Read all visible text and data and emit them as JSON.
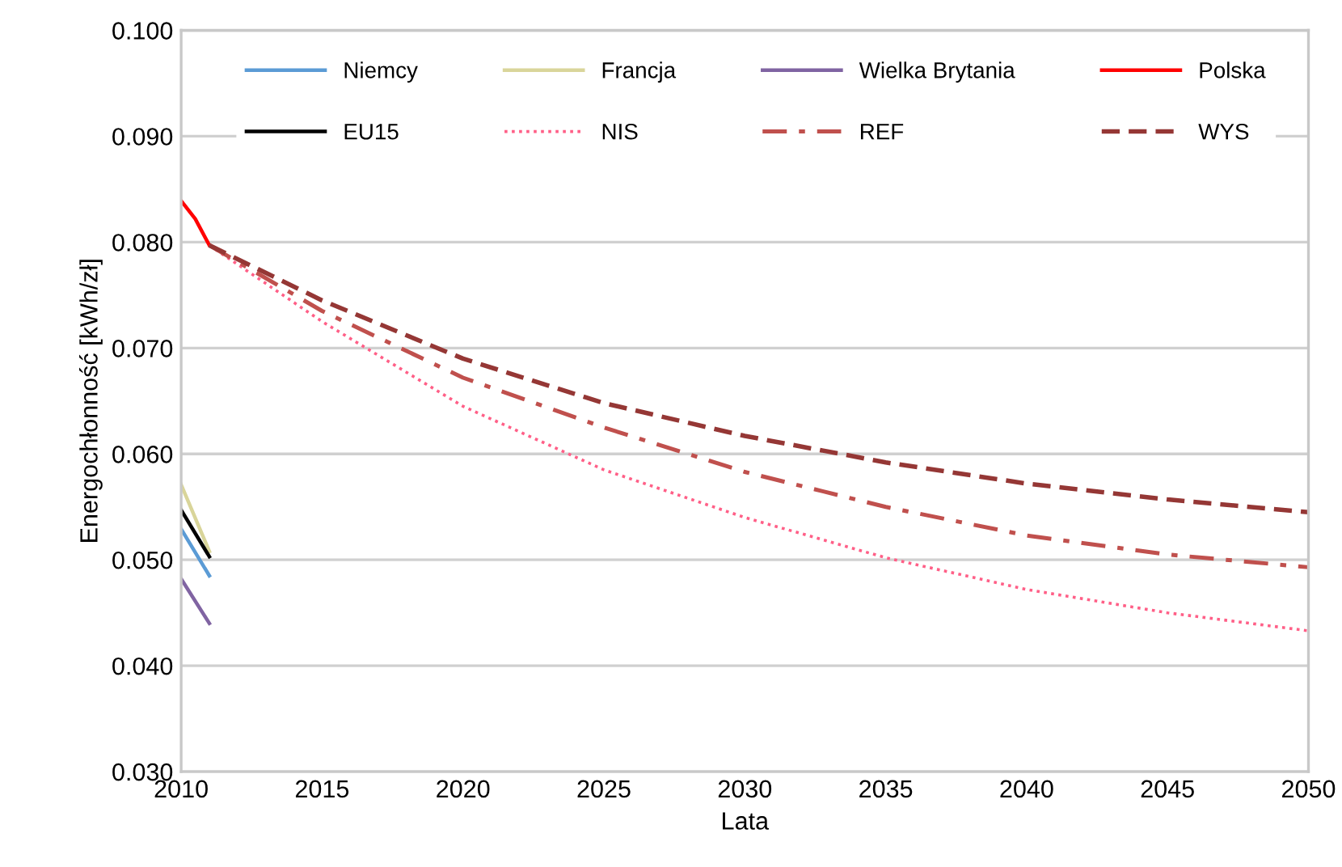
{
  "chart_data": {
    "type": "line",
    "xlabel": "Lata",
    "ylabel": "Energochłonność [kWh/zł]",
    "xlim": [
      2010,
      2050
    ],
    "xticks": [
      2010,
      2015,
      2020,
      2025,
      2030,
      2035,
      2040,
      2045,
      2050
    ],
    "ylim": [
      0.03,
      0.1
    ],
    "yticks": [
      {
        "value": 0.03,
        "label": "0.030"
      },
      {
        "value": 0.04,
        "label": "0.040"
      },
      {
        "value": 0.05,
        "label": "0.050"
      },
      {
        "value": 0.06,
        "label": "0.060"
      },
      {
        "value": 0.07,
        "label": "0.070"
      },
      {
        "value": 0.08,
        "label": "0.080"
      },
      {
        "value": 0.09,
        "label": "0.090"
      },
      {
        "value": 0.1,
        "label": "0.100"
      }
    ],
    "grid": "y",
    "legend": "top",
    "marker": "none",
    "series": [
      {
        "name": "Niemcy",
        "color": "#5b9bd5",
        "x": [
          2010,
          2011
        ],
        "values": [
          0.0529,
          0.0485
        ],
        "line_style": "solid"
      },
      {
        "name": "Francja",
        "color": "#d9d59a",
        "x": [
          2010,
          2011
        ],
        "values": [
          0.0571,
          0.0508
        ],
        "line_style": "solid"
      },
      {
        "name": "Wielka Brytania",
        "color": "#8064a2",
        "x": [
          2010,
          2011
        ],
        "values": [
          0.0482,
          0.044
        ],
        "line_style": "solid"
      },
      {
        "name": "Polska",
        "color": "#ff0000",
        "x": [
          2010,
          2010.5,
          2011
        ],
        "values": [
          0.0839,
          0.0822,
          0.0797
        ],
        "line_style": "solid"
      },
      {
        "name": "EU15",
        "color": "#000000",
        "x": [
          2010,
          2011
        ],
        "values": [
          0.0547,
          0.0503
        ],
        "line_style": "solid"
      },
      {
        "name": "NIS",
        "color": "#ff5f87",
        "x": [
          2011,
          2015,
          2020,
          2025,
          2030,
          2035,
          2040,
          2045,
          2050
        ],
        "values": [
          0.0797,
          0.0725,
          0.0645,
          0.0585,
          0.054,
          0.0502,
          0.0472,
          0.045,
          0.0433
        ],
        "line_style": "dotted"
      },
      {
        "name": "REF",
        "color": "#c0504d",
        "x": [
          2011,
          2015,
          2020,
          2025,
          2030,
          2035,
          2040,
          2045,
          2050
        ],
        "values": [
          0.0797,
          0.0735,
          0.0672,
          0.0625,
          0.0583,
          0.055,
          0.0523,
          0.0505,
          0.0493
        ],
        "line_style": "dashdot"
      },
      {
        "name": "WYS",
        "color": "#953735",
        "x": [
          2011,
          2015,
          2020,
          2025,
          2030,
          2035,
          2040,
          2045,
          2050
        ],
        "values": [
          0.0797,
          0.0745,
          0.069,
          0.0648,
          0.0617,
          0.0592,
          0.0572,
          0.0557,
          0.0545
        ],
        "line_style": "dashed"
      }
    ]
  }
}
